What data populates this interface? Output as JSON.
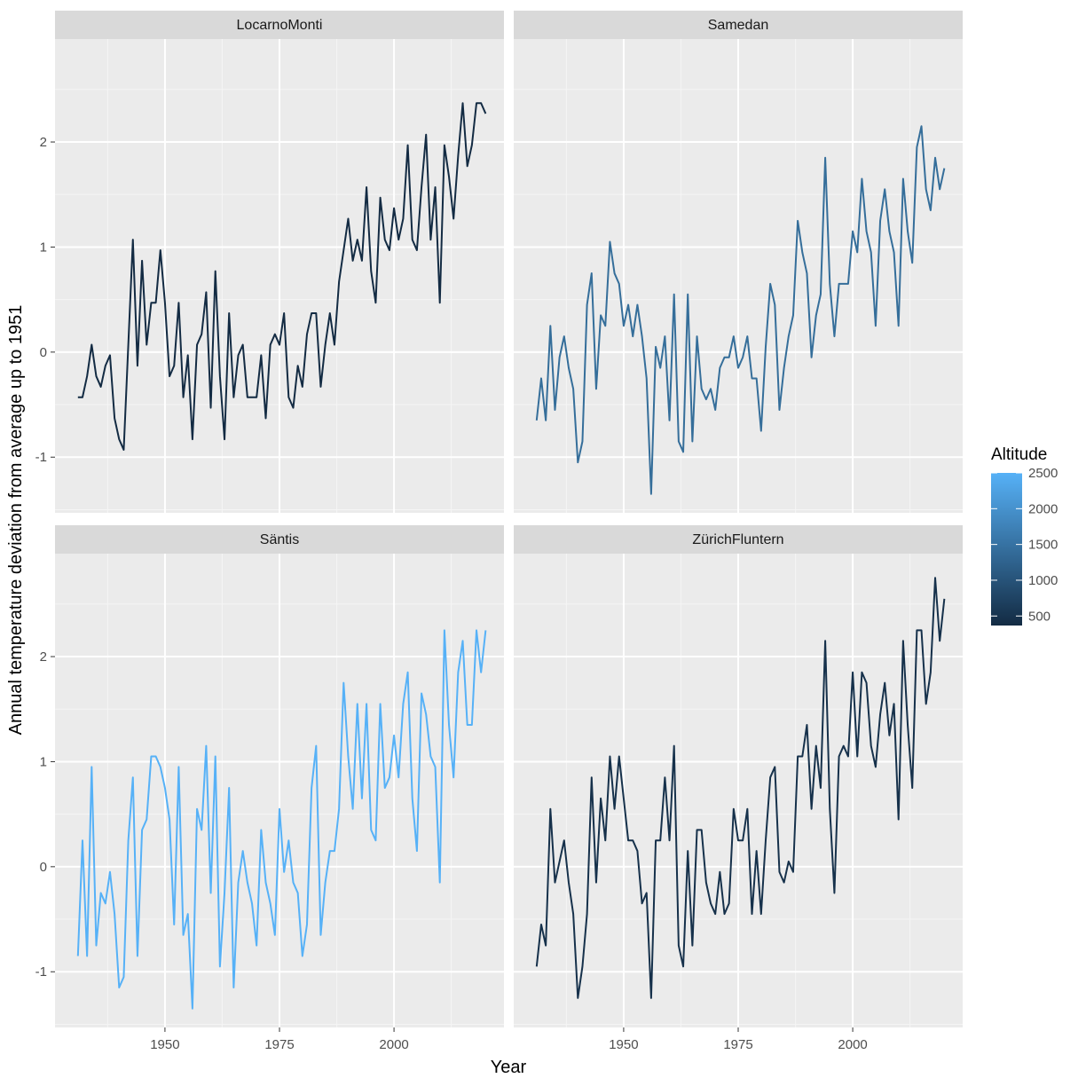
{
  "chart_data": {
    "type": "line",
    "xlabel": "Year",
    "ylabel": "Annual temperature deviation from average up to 1951",
    "xlim": [
      1926,
      2024
    ],
    "ylim": [
      -1.53,
      2.98
    ],
    "xticks": [
      1950,
      1975,
      2000
    ],
    "yticks": [
      -1,
      0,
      1,
      2
    ],
    "grid": true,
    "legend": {
      "title": "Altitude",
      "placement": "right",
      "type": "colorbar",
      "range": [
        367,
        2500
      ],
      "ticks": [
        500,
        1000,
        1500,
        2000,
        2500
      ],
      "low_color": "#132B43",
      "high_color": "#56B1F7"
    },
    "x": [
      1931,
      1932,
      1933,
      1934,
      1935,
      1936,
      1937,
      1938,
      1939,
      1940,
      1941,
      1942,
      1943,
      1944,
      1945,
      1946,
      1947,
      1948,
      1949,
      1950,
      1951,
      1952,
      1953,
      1954,
      1955,
      1956,
      1957,
      1958,
      1959,
      1960,
      1961,
      1962,
      1963,
      1964,
      1965,
      1966,
      1967,
      1968,
      1969,
      1970,
      1971,
      1972,
      1973,
      1974,
      1975,
      1976,
      1977,
      1978,
      1979,
      1980,
      1981,
      1982,
      1983,
      1984,
      1985,
      1986,
      1987,
      1988,
      1989,
      1990,
      1991,
      1992,
      1993,
      1994,
      1995,
      1996,
      1997,
      1998,
      1999,
      2000,
      2001,
      2002,
      2003,
      2004,
      2005,
      2006,
      2007,
      2008,
      2009,
      2010,
      2011,
      2012,
      2013,
      2014,
      2015,
      2016,
      2017,
      2018,
      2019,
      2020
    ],
    "panels": [
      {
        "name": "LocarnoMonti",
        "altitude": 367,
        "color": "#132B43",
        "values": [
          -0.43,
          -0.43,
          -0.23,
          0.07,
          -0.23,
          -0.33,
          -0.13,
          -0.03,
          -0.63,
          -0.83,
          -0.93,
          0.07,
          1.07,
          -0.13,
          0.87,
          0.07,
          0.47,
          0.47,
          0.97,
          0.47,
          -0.23,
          -0.13,
          0.47,
          -0.43,
          -0.03,
          -0.83,
          0.07,
          0.17,
          0.57,
          -0.53,
          0.77,
          -0.23,
          -0.83,
          0.37,
          -0.43,
          -0.03,
          0.07,
          -0.43,
          -0.43,
          -0.43,
          -0.03,
          -0.63,
          0.07,
          0.17,
          0.07,
          0.37,
          -0.43,
          -0.53,
          -0.13,
          -0.33,
          0.17,
          0.37,
          0.37,
          -0.33,
          0.07,
          0.37,
          0.07,
          0.67,
          0.97,
          1.27,
          0.87,
          1.07,
          0.87,
          1.57,
          0.77,
          0.47,
          1.47,
          1.07,
          0.97,
          1.37,
          1.07,
          1.27,
          1.97,
          1.07,
          0.97,
          1.57,
          2.07,
          1.07,
          1.57,
          0.47,
          1.97,
          1.67,
          1.27,
          1.87,
          2.37,
          1.77,
          1.97,
          2.37,
          2.37,
          2.27
        ]
      },
      {
        "name": "Samedan",
        "altitude": 1708,
        "color": "#356E9A",
        "values": [
          -0.65,
          -0.25,
          -0.65,
          0.25,
          -0.55,
          -0.05,
          0.15,
          -0.15,
          -0.35,
          -1.05,
          -0.85,
          0.45,
          0.75,
          -0.35,
          0.35,
          0.25,
          1.05,
          0.75,
          0.65,
          0.25,
          0.45,
          0.15,
          0.45,
          0.15,
          -0.25,
          -1.35,
          0.05,
          -0.15,
          0.15,
          -0.65,
          0.55,
          -0.85,
          -0.95,
          0.55,
          -0.85,
          0.15,
          -0.35,
          -0.45,
          -0.35,
          -0.55,
          -0.15,
          -0.05,
          -0.05,
          0.15,
          -0.15,
          -0.05,
          0.15,
          -0.25,
          -0.25,
          -0.75,
          0.05,
          0.65,
          0.45,
          -0.55,
          -0.15,
          0.15,
          0.35,
          1.25,
          0.95,
          0.75,
          -0.05,
          0.35,
          0.55,
          1.85,
          0.65,
          0.15,
          0.65,
          0.65,
          0.65,
          1.15,
          0.95,
          1.65,
          1.15,
          0.95,
          0.25,
          1.25,
          1.55,
          1.15,
          0.95,
          0.25,
          1.65,
          1.15,
          0.85,
          1.95,
          2.15,
          1.55,
          1.35,
          1.85,
          1.55,
          1.75
        ]
      },
      {
        "name": "Säntis",
        "altitude": 2502,
        "color": "#56B1F7",
        "values": [
          -0.85,
          0.25,
          -0.85,
          0.95,
          -0.75,
          -0.25,
          -0.35,
          -0.05,
          -0.45,
          -1.15,
          -1.05,
          0.25,
          0.85,
          -0.85,
          0.35,
          0.45,
          1.05,
          1.05,
          0.95,
          0.75,
          0.45,
          -0.55,
          0.95,
          -0.65,
          -0.45,
          -1.35,
          0.55,
          0.35,
          1.15,
          -0.25,
          1.05,
          -0.95,
          -0.25,
          0.75,
          -1.15,
          -0.15,
          0.15,
          -0.15,
          -0.35,
          -0.75,
          0.35,
          -0.15,
          -0.35,
          -0.65,
          0.55,
          -0.05,
          0.25,
          -0.15,
          -0.25,
          -0.85,
          -0.55,
          0.75,
          1.15,
          -0.65,
          -0.15,
          0.15,
          0.15,
          0.55,
          1.75,
          1.05,
          0.55,
          1.55,
          0.65,
          1.55,
          0.35,
          0.25,
          1.55,
          0.75,
          0.85,
          1.25,
          0.85,
          1.55,
          1.85,
          0.65,
          0.15,
          1.65,
          1.45,
          1.05,
          0.95,
          -0.15,
          2.25,
          1.35,
          0.85,
          1.85,
          2.15,
          1.35,
          1.35,
          2.25,
          1.85,
          2.25
        ]
      },
      {
        "name": "ZürichFluntern",
        "altitude": 556,
        "color": "#16314B",
        "values": [
          -0.95,
          -0.55,
          -0.75,
          0.55,
          -0.15,
          0.05,
          0.25,
          -0.15,
          -0.45,
          -1.25,
          -0.95,
          -0.45,
          0.85,
          -0.15,
          0.65,
          0.25,
          1.05,
          0.55,
          1.05,
          0.65,
          0.25,
          0.25,
          0.15,
          -0.35,
          -0.25,
          -1.25,
          0.25,
          0.25,
          0.85,
          0.25,
          1.15,
          -0.75,
          -0.95,
          0.15,
          -0.75,
          0.35,
          0.35,
          -0.15,
          -0.35,
          -0.45,
          -0.05,
          -0.45,
          -0.35,
          0.55,
          0.25,
          0.25,
          0.55,
          -0.45,
          0.15,
          -0.45,
          0.25,
          0.85,
          0.95,
          -0.05,
          -0.15,
          0.05,
          -0.05,
          1.05,
          1.05,
          1.35,
          0.55,
          1.15,
          0.75,
          2.15,
          0.55,
          -0.25,
          1.05,
          1.15,
          1.05,
          1.85,
          1.05,
          1.85,
          1.75,
          1.15,
          0.95,
          1.45,
          1.75,
          1.25,
          1.55,
          0.45,
          2.15,
          1.35,
          0.75,
          2.25,
          2.25,
          1.55,
          1.85,
          2.75,
          2.15,
          2.55
        ]
      }
    ]
  }
}
